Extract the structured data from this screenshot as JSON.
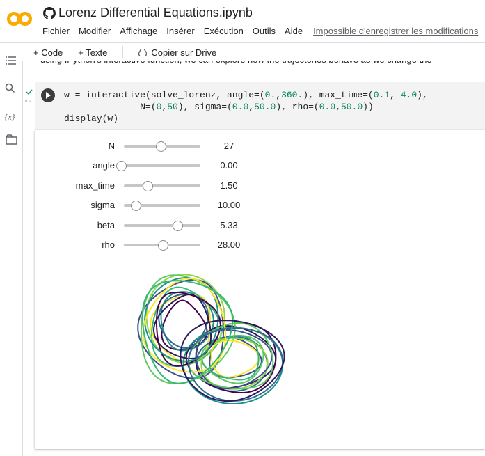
{
  "header": {
    "title": "Lorenz Differential Equations.ipynb",
    "menu": [
      "Fichier",
      "Modifier",
      "Affichage",
      "Insérer",
      "Exécution",
      "Outils",
      "Aide"
    ],
    "save_warning": "Impossible d'enregistrer les modifications"
  },
  "toolbar": {
    "add_code": "+ Code",
    "add_text": "+ Texte",
    "copy_drive": "Copier sur Drive"
  },
  "text_cell": "using IPython's interactive function, we can explore how the trajectories behave as we change the",
  "code_cell": {
    "lines": [
      "w = interactive(solve_lorenz, angle=(0.,360.), max_time=(0.1, 4.0),",
      "              N=(0,50), sigma=(0.0,50.0), rho=(0.0,50.0))",
      "display(w)"
    ]
  },
  "widgets": [
    {
      "label": "N",
      "value": "27"
    },
    {
      "label": "angle",
      "value": "0.00"
    },
    {
      "label": "max_time",
      "value": "1.50"
    },
    {
      "label": "sigma",
      "value": "10.00"
    },
    {
      "label": "beta",
      "value": "5.33"
    },
    {
      "label": "rho",
      "value": "28.00"
    }
  ]
}
